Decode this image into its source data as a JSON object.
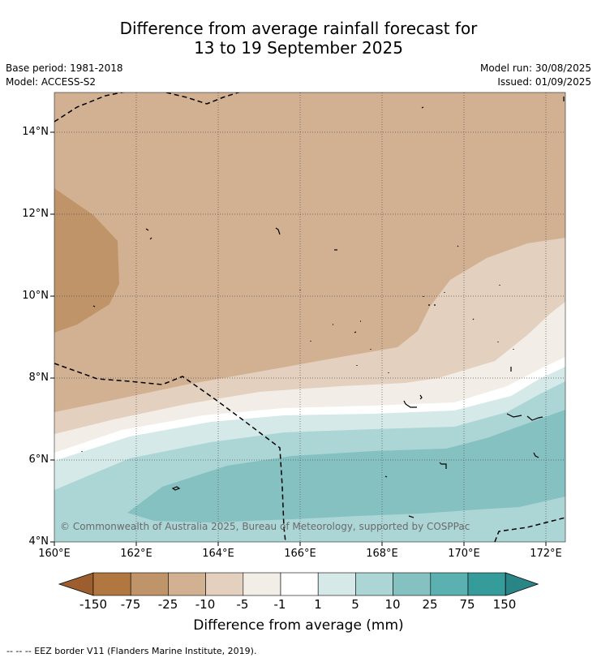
{
  "title": {
    "line1": "Difference from average rainfall forecast for",
    "line2": "13 to 19 September 2025"
  },
  "meta": {
    "base_period": "Base period: 1981-2018",
    "model": "Model: ACCESS-S2",
    "model_run": "Model run: 30/08/2025",
    "issued": "Issued: 01/09/2025"
  },
  "map": {
    "lat_labels": [
      "14°N",
      "12°N",
      "10°N",
      "8°N",
      "6°N",
      "4°N"
    ],
    "lon_labels": [
      "160°E",
      "162°E",
      "164°E",
      "166°E",
      "168°E",
      "170°E",
      "172°E"
    ],
    "copyright": "© Commonwealth of Australia 2025, Bureau of Meteorology, supported by COSPPac"
  },
  "colorbar": {
    "ticks": [
      "-150",
      "-75",
      "-25",
      "-10",
      "-5",
      "-1",
      "1",
      "5",
      "10",
      "25",
      "75",
      "150"
    ],
    "colors": [
      "#9c5e2e",
      "#b07840",
      "#bf9468",
      "#d2b192",
      "#e3d0bf",
      "#f3ede7",
      "#ffffff",
      "#d5e9e9",
      "#acd5d5",
      "#85c1c1",
      "#5bb0b0",
      "#359b9b",
      "#2a8686"
    ],
    "label": "Difference from average (mm)"
  },
  "footer": "--  --  -- EEZ border V11 (Flanders Marine Institute, 2019)."
}
